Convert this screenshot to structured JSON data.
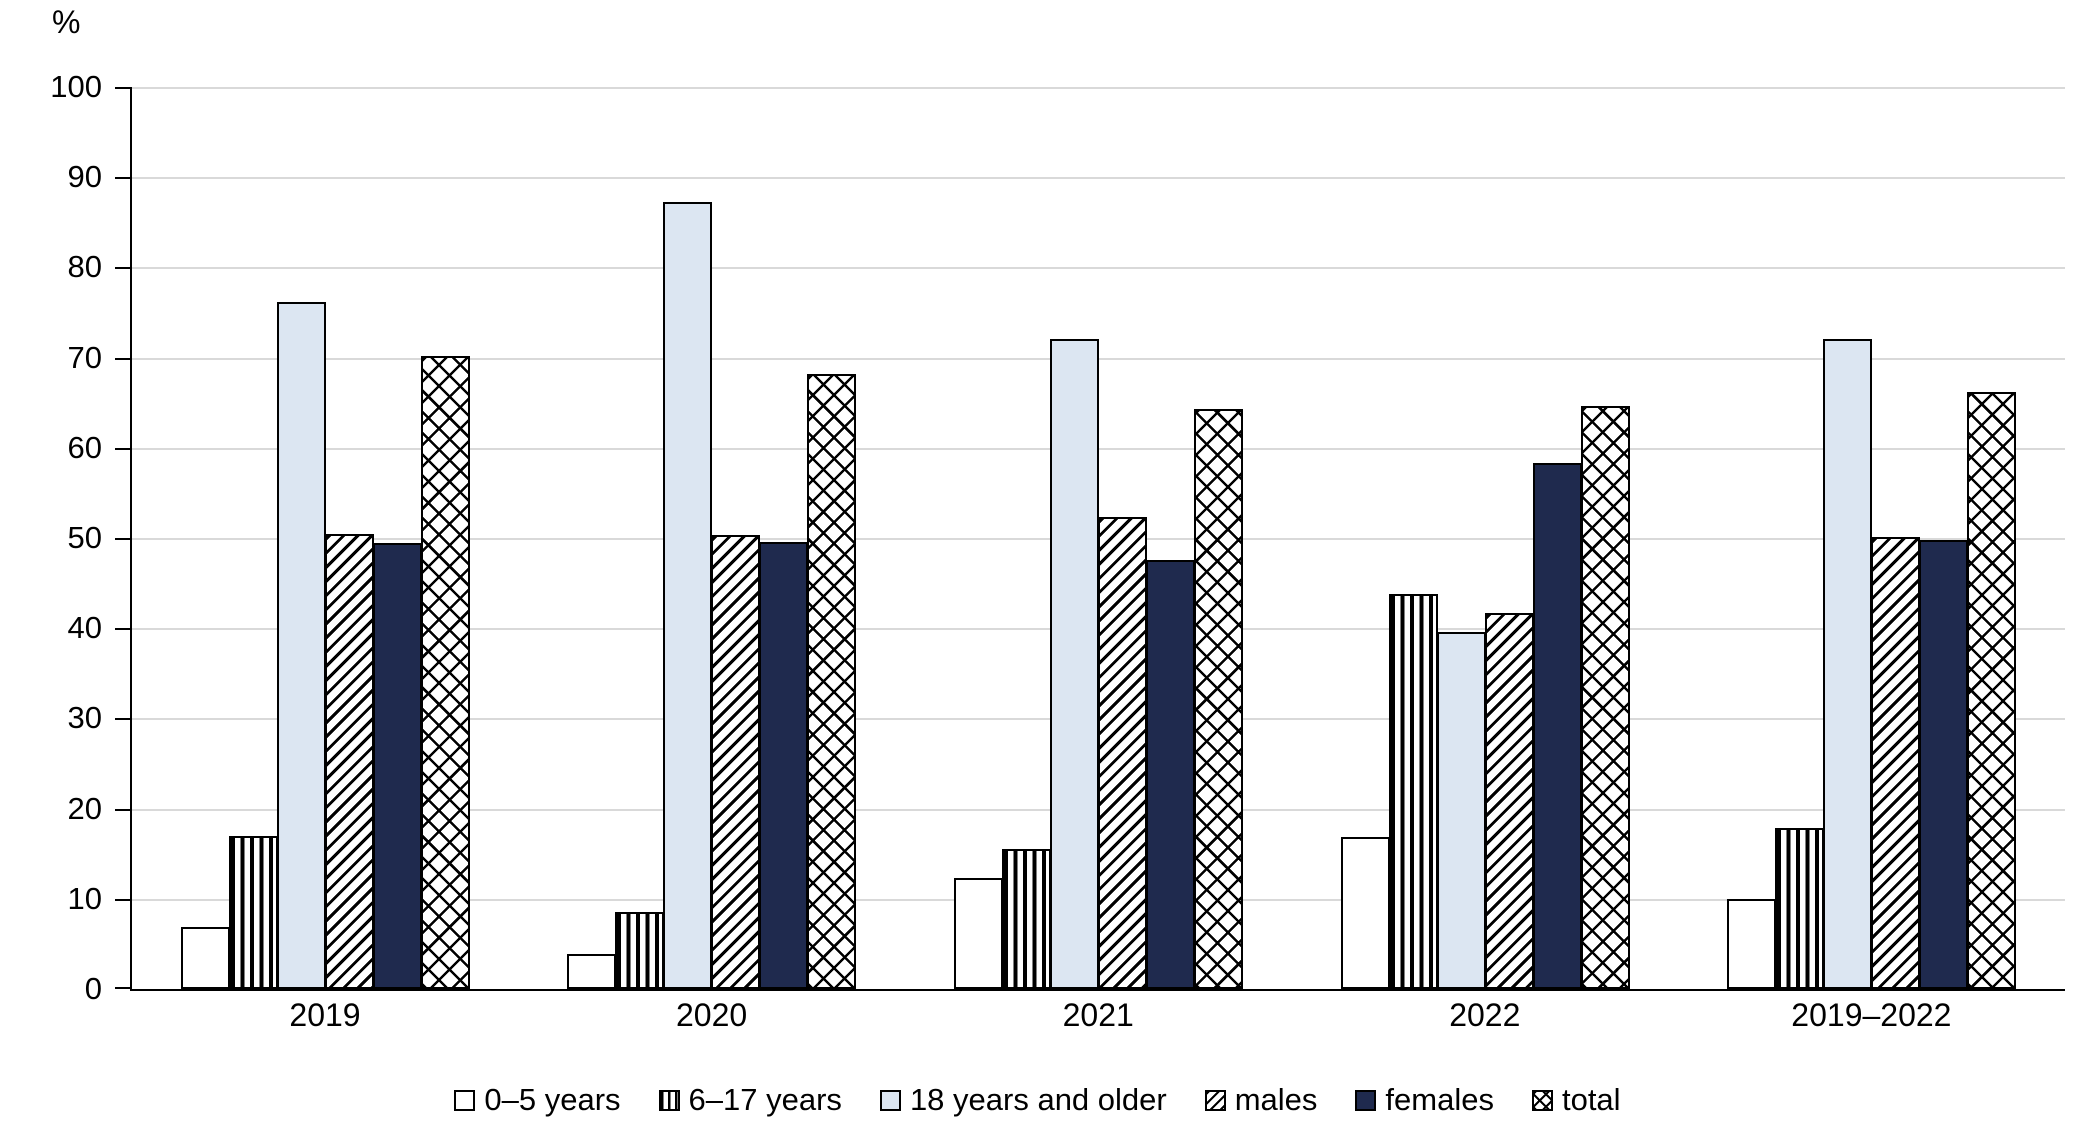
{
  "chart_data": {
    "type": "bar",
    "title": "",
    "ylabel": "%",
    "xlabel": "",
    "ylim": [
      0,
      100
    ],
    "yticks": [
      0,
      10,
      20,
      30,
      40,
      50,
      60,
      70,
      80,
      90,
      100
    ],
    "grid": true,
    "legend_position": "bottom",
    "categories": [
      "2019",
      "2020",
      "2021",
      "2022",
      "2019–2022"
    ],
    "series": [
      {
        "name": "0–5 years",
        "pattern": "plain",
        "fill": "#ffffff",
        "values": [
          6.9,
          3.9,
          12.3,
          16.8,
          10.0
        ]
      },
      {
        "name": "6–17 years",
        "pattern": "vstripe",
        "fill": "#ffffff",
        "values": [
          17.0,
          8.5,
          15.5,
          43.8,
          17.8
        ]
      },
      {
        "name": "18 years and older",
        "pattern": "solid",
        "fill": "#dce6f2",
        "values": [
          76.2,
          87.3,
          72.1,
          39.6,
          72.1
        ]
      },
      {
        "name": "males",
        "pattern": "diag",
        "fill": "#ffffff",
        "values": [
          50.4,
          50.3,
          52.3,
          41.7,
          50.1
        ]
      },
      {
        "name": "females",
        "pattern": "solid",
        "fill": "#1f2a4e",
        "values": [
          49.5,
          49.6,
          47.6,
          58.3,
          49.8
        ]
      },
      {
        "name": "total",
        "pattern": "cross",
        "fill": "#ffffff",
        "values": [
          70.2,
          68.2,
          64.3,
          64.6,
          66.2
        ]
      }
    ],
    "colors": {
      "light_blue": "#dce6f2",
      "navy": "#1f2a4e",
      "gridline": "#d9d9d9",
      "axis": "#000000",
      "bar_border": "#000000"
    }
  }
}
